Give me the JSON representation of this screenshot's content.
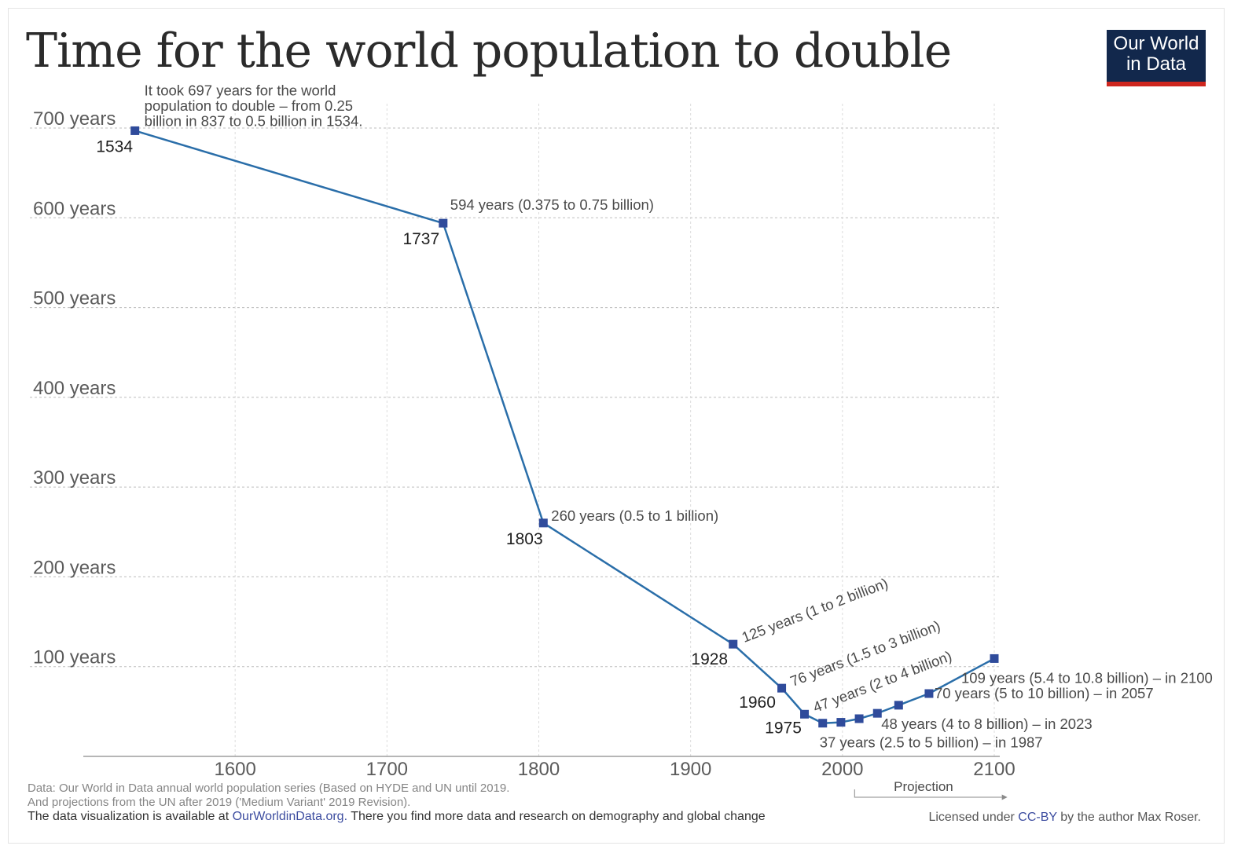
{
  "header": {
    "title": "Time for the world population to double",
    "logo_line1": "Our World",
    "logo_line2": "in Data"
  },
  "chart_data": {
    "type": "line",
    "title": "Time for the world population to double",
    "xlim": [
      1500,
      2100
    ],
    "ylim": [
      0,
      700
    ],
    "x_ticks": [
      {
        "value": 1600,
        "label": "1600"
      },
      {
        "value": 1700,
        "label": "1700"
      },
      {
        "value": 1800,
        "label": "1800"
      },
      {
        "value": 1900,
        "label": "1900"
      },
      {
        "value": 2000,
        "label": "2000"
      },
      {
        "value": 2100,
        "label": "2100"
      }
    ],
    "y_ticks": [
      {
        "value": 100,
        "label": "100 years"
      },
      {
        "value": 200,
        "label": "200 years"
      },
      {
        "value": 300,
        "label": "300 years"
      },
      {
        "value": 400,
        "label": "400 years"
      },
      {
        "value": 500,
        "label": "500 years"
      },
      {
        "value": 600,
        "label": "600 years"
      },
      {
        "value": 700,
        "label": "700 years"
      }
    ],
    "grid": true,
    "color": "#2a6ea9",
    "marker_color": "#2f4b9b",
    "points": [
      {
        "x": 1534,
        "y": 697
      },
      {
        "x": 1737,
        "y": 594
      },
      {
        "x": 1803,
        "y": 260
      },
      {
        "x": 1928,
        "y": 125
      },
      {
        "x": 1960,
        "y": 76
      },
      {
        "x": 1975,
        "y": 47
      },
      {
        "x": 1987,
        "y": 37
      },
      {
        "x": 1999,
        "y": 38
      },
      {
        "x": 2011,
        "y": 42
      },
      {
        "x": 2023,
        "y": 48
      },
      {
        "x": 2037,
        "y": 57
      },
      {
        "x": 2057,
        "y": 70
      },
      {
        "x": 2100,
        "y": 109
      }
    ],
    "year_labels": [
      {
        "x": 1534,
        "y": 697,
        "text": "1534"
      },
      {
        "x": 1737,
        "y": 594,
        "text": "1737"
      },
      {
        "x": 1803,
        "y": 260,
        "text": "1803"
      },
      {
        "x": 1928,
        "y": 125,
        "text": "1928"
      },
      {
        "x": 1960,
        "y": 76,
        "text": "1960"
      },
      {
        "x": 1975,
        "y": 47,
        "text": "1975"
      }
    ],
    "annotations": [
      {
        "x": 1534,
        "y": 697,
        "lines": [
          "It took 697 years for the world",
          "population to double – from 0.25",
          "billion in 837 to 0.5 billion in 1534."
        ]
      },
      {
        "x": 1737,
        "y": 594,
        "text": "594 years (0.375 to 0.75 billion)"
      },
      {
        "x": 1803,
        "y": 260,
        "text": "260 years (0.5 to 1 billion)"
      },
      {
        "x": 1928,
        "y": 125,
        "text": "125 years (1 to 2 billion)",
        "rotate": true
      },
      {
        "x": 1960,
        "y": 76,
        "text": "76 years (1.5 to 3 billion)",
        "rotate": true
      },
      {
        "x": 1975,
        "y": 47,
        "text": "47 years (2 to 4 billion)",
        "rotate": true
      },
      {
        "x": 2100,
        "y": 109,
        "text": "109 years (5.4 to 10.8 billion) – in 2100"
      },
      {
        "x": 2057,
        "y": 70,
        "text": "70 years (5 to 10 billion) – in 2057"
      },
      {
        "x": 2023,
        "y": 48,
        "text": "48 years (4 to 8 billion) – in 2023"
      },
      {
        "x": 1987,
        "y": 37,
        "text": "37 years (2.5 to 5 billion) – in 1987"
      }
    ],
    "projection": {
      "label": "Projection",
      "from": 2008,
      "to": 2105
    }
  },
  "footer": {
    "line1": "Data: Our World in Data annual world population series (Based on HYDE and UN until 2019.",
    "line2": "And projections from the UN after 2019 ('Medium Variant' 2019 Revision).",
    "line3_pre": "The data visualization is available at ",
    "line3_link": "OurWorldinData.org.",
    "line3_post": " There you find more data and research on demography and global change",
    "license_pre": "Licensed under ",
    "license_link": "CC-BY",
    "license_post": " by the author Max Roser."
  }
}
